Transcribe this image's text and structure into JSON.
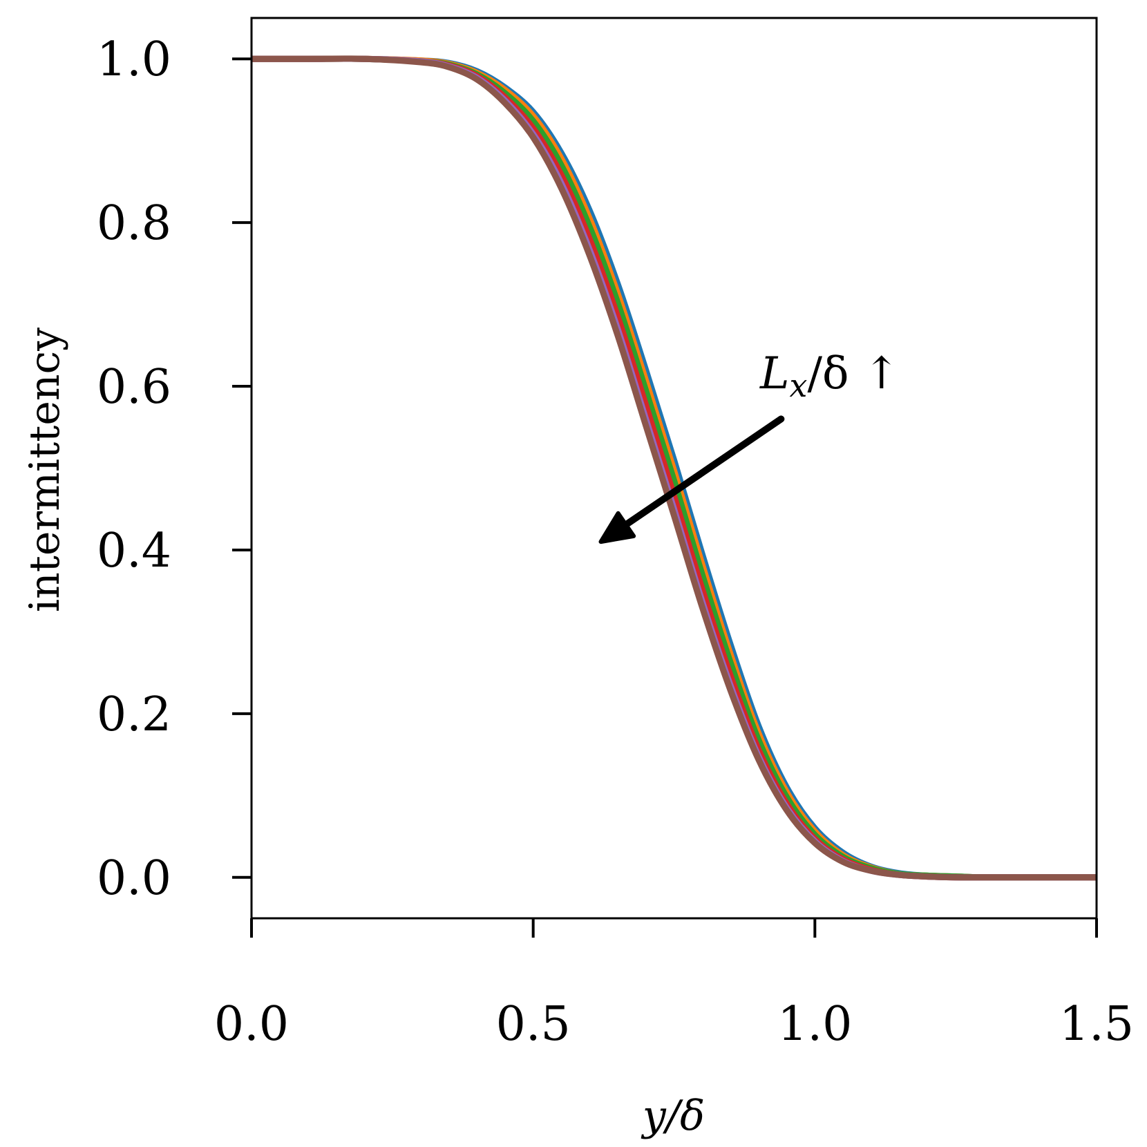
{
  "chart_data": {
    "type": "line",
    "xlabel": "y/δ",
    "ylabel": "intermittency",
    "xlim": [
      0.0,
      1.5
    ],
    "ylim": [
      -0.05,
      1.05
    ],
    "xticks": [
      0.0,
      0.5,
      1.0,
      1.5
    ],
    "xtick_labels": [
      "0.0",
      "0.5",
      "1.0",
      "1.5"
    ],
    "yticks": [
      0.0,
      0.2,
      0.4,
      0.6,
      0.8,
      1.0
    ],
    "ytick_labels": [
      "0.0",
      "0.2",
      "0.4",
      "0.6",
      "0.8",
      "1.0"
    ],
    "grid": false,
    "annotation": {
      "text_main": "L",
      "text_sub": "x",
      "text_rest": "/δ ↑",
      "arrow_from": [
        0.94,
        0.56
      ],
      "arrow_to": [
        0.62,
        0.41
      ]
    },
    "x": [
      0.0,
      0.1,
      0.2,
      0.3,
      0.35,
      0.4,
      0.45,
      0.5,
      0.55,
      0.6,
      0.65,
      0.7,
      0.75,
      0.8,
      0.85,
      0.9,
      0.95,
      1.0,
      1.05,
      1.1,
      1.15,
      1.2,
      1.25,
      1.3,
      1.4,
      1.5
    ],
    "series": [
      {
        "color": "#1f77b4",
        "values": [
          1.0,
          1.0,
          1.0,
          0.998,
          0.995,
          0.985,
          0.965,
          0.935,
          0.885,
          0.815,
          0.725,
          0.62,
          0.51,
          0.395,
          0.285,
          0.185,
          0.11,
          0.06,
          0.03,
          0.013,
          0.005,
          0.002,
          0.001,
          0.0,
          0.0,
          0.0
        ]
      },
      {
        "color": "#ff7f0e",
        "values": [
          1.0,
          1.0,
          1.0,
          0.998,
          0.994,
          0.983,
          0.962,
          0.93,
          0.878,
          0.805,
          0.713,
          0.607,
          0.497,
          0.382,
          0.273,
          0.176,
          0.104,
          0.056,
          0.027,
          0.012,
          0.004,
          0.002,
          0.001,
          0.0,
          0.0,
          0.0
        ]
      },
      {
        "color": "#2ca02c",
        "values": [
          1.0,
          1.0,
          1.0,
          0.997,
          0.993,
          0.981,
          0.958,
          0.924,
          0.87,
          0.795,
          0.702,
          0.595,
          0.485,
          0.37,
          0.263,
          0.168,
          0.098,
          0.052,
          0.025,
          0.011,
          0.004,
          0.002,
          0.001,
          0.0,
          0.0,
          0.0
        ]
      },
      {
        "color": "#d62728",
        "values": [
          1.0,
          1.0,
          1.0,
          0.997,
          0.992,
          0.979,
          0.953,
          0.915,
          0.858,
          0.78,
          0.685,
          0.577,
          0.466,
          0.352,
          0.247,
          0.156,
          0.09,
          0.047,
          0.022,
          0.009,
          0.003,
          0.001,
          0.0,
          0.0,
          0.0,
          0.0
        ]
      },
      {
        "color": "#9467bd",
        "values": [
          1.0,
          1.0,
          1.0,
          0.997,
          0.991,
          0.977,
          0.949,
          0.908,
          0.848,
          0.767,
          0.67,
          0.56,
          0.45,
          0.337,
          0.235,
          0.148,
          0.085,
          0.044,
          0.02,
          0.008,
          0.003,
          0.001,
          0.0,
          0.0,
          0.0,
          0.0
        ]
      },
      {
        "color": "#8c564b",
        "values": [
          1.0,
          1.0,
          1.0,
          0.996,
          0.99,
          0.975,
          0.946,
          0.904,
          0.842,
          0.76,
          0.662,
          0.552,
          0.442,
          0.33,
          0.229,
          0.144,
          0.082,
          0.042,
          0.019,
          0.008,
          0.003,
          0.001,
          0.0,
          0.0,
          0.0,
          0.0
        ]
      }
    ]
  }
}
